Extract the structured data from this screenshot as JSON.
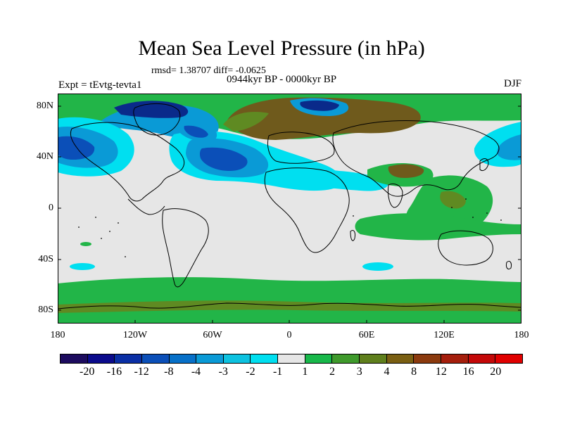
{
  "title": "Mean Sea Level Pressure (in hPa)",
  "stats": "rmsd= 1.38707 diff= -0.0625",
  "experiment": "Expt = tEvtg-tevta1",
  "period": "0944kyr BP - 0000kyr BP",
  "season": "DJF",
  "lat_labels": [
    "80N",
    "40N",
    "0",
    "40S",
    "80S"
  ],
  "lon_labels": [
    "180",
    "120W",
    "60W",
    "0",
    "60E",
    "120E",
    "180"
  ],
  "colorbar": {
    "colors": [
      "#1c0b5e",
      "#0b0b8c",
      "#0a2fa5",
      "#0b4fb8",
      "#0770c8",
      "#0a9ad6",
      "#0dc2e0",
      "#00dff0",
      "#e6e6e6",
      "#18b84a",
      "#3f9a2c",
      "#5f7f1c",
      "#7a5f12",
      "#8b3a0e",
      "#a51e0c",
      "#c40808",
      "#e00000"
    ],
    "labels": [
      "-20",
      "-16",
      "-12",
      "-8",
      "-4",
      "-3",
      "-2",
      "-1",
      "1",
      "2",
      "3",
      "4",
      "8",
      "12",
      "16",
      "20"
    ]
  },
  "legend_colors": {
    "neutral": "#e6e6e6",
    "light_green": "#22b548",
    "dark_green": "#5f8a22",
    "brown": "#6f5a1c",
    "light_blue": "#00dff0",
    "mid_blue": "#0a9ad6",
    "deep_blue": "#0b4fb8",
    "navy": "#0a2a8a"
  }
}
